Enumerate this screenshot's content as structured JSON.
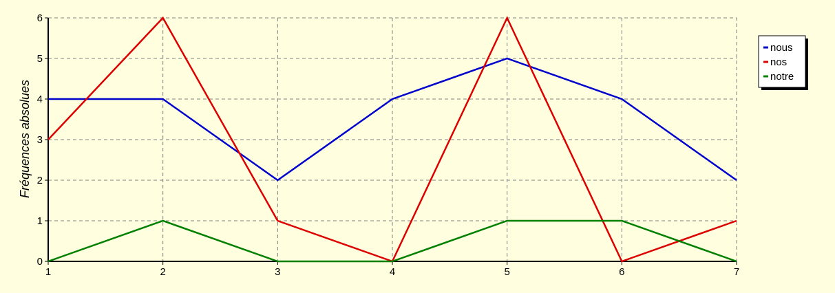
{
  "chart_data": {
    "type": "line",
    "title": "",
    "xlabel": "",
    "ylabel": "Fréquences absolues",
    "x": [
      1,
      2,
      3,
      4,
      5,
      6,
      7
    ],
    "xlim": [
      1,
      7
    ],
    "ylim": [
      0,
      6
    ],
    "x_ticks": [
      "1",
      "2",
      "3",
      "4",
      "5",
      "6",
      "7"
    ],
    "y_ticks": [
      "0",
      "1",
      "2",
      "3",
      "4",
      "5",
      "6"
    ],
    "grid": true,
    "legend_position": "right",
    "series": [
      {
        "name": "nous",
        "color": "#0000cc",
        "values": [
          4,
          4,
          2,
          4,
          5,
          4,
          2
        ]
      },
      {
        "name": "nos",
        "color": "#dd0000",
        "values": [
          3,
          6,
          1,
          0,
          6,
          0,
          1
        ]
      },
      {
        "name": "notre",
        "color": "#008000",
        "values": [
          0,
          1,
          0,
          0,
          1,
          1,
          0
        ]
      }
    ],
    "colors": {
      "background": "#ffffe0",
      "grid": "#808080",
      "axis": "#000000"
    }
  }
}
